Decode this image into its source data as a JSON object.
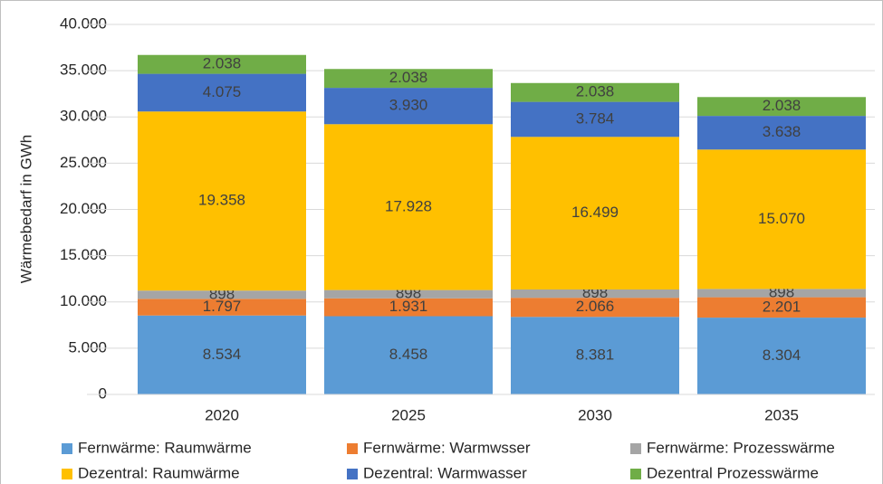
{
  "chart_data": {
    "type": "stacked-bar",
    "y_label": "Wärmebedarf in GWh",
    "categories": [
      "2020",
      "2025",
      "2030",
      "2035"
    ],
    "ylim": [
      0,
      40000
    ],
    "yticks": [
      0,
      {
        "value": 5000,
        "label": "5.000"
      },
      {
        "value": 10000,
        "label": "10.000"
      },
      {
        "value": 15000,
        "label": "15.000"
      },
      {
        "value": 20000,
        "label": "20.000"
      },
      {
        "value": 25000,
        "label": "25.000"
      },
      {
        "value": 30000,
        "label": "30.000"
      },
      {
        "value": 35000,
        "label": "35.000"
      },
      {
        "value": 40000,
        "label": "40.000"
      }
    ],
    "grid": true,
    "legend": "bottom",
    "series": [
      {
        "name": "Fernwärme: Raumwärme",
        "color": "#5b9bd5",
        "values": [
          8534,
          8458,
          8381,
          8304
        ],
        "value_labels": [
          "8.534",
          "8.458",
          "8.381",
          "8.304"
        ]
      },
      {
        "name": "Fernwärme: Warmwsser",
        "color": "#ed7d31",
        "values": [
          1797,
          1931,
          2066,
          2201
        ],
        "value_labels": [
          "1.797",
          "1.931",
          "2.066",
          "2.201"
        ]
      },
      {
        "name": "Fernwärme: Prozesswärme",
        "color": "#a5a5a5",
        "values": [
          898,
          898,
          898,
          898
        ],
        "value_labels": [
          "898",
          "898",
          "898",
          "898"
        ]
      },
      {
        "name": "Dezentral: Raumwärme",
        "color": "#ffc000",
        "values": [
          19358,
          17928,
          16499,
          15070
        ],
        "value_labels": [
          "19.358",
          "17.928",
          "16.499",
          "15.070"
        ]
      },
      {
        "name": "Dezentral: Warmwasser",
        "color": "#4472c4",
        "values": [
          4075,
          3930,
          3784,
          3638
        ],
        "value_labels": [
          "4.075",
          "3.930",
          "3.784",
          "3.638"
        ]
      },
      {
        "name": "Dezentral Prozesswärme",
        "color": "#70ad47",
        "values": [
          2038,
          2038,
          2038,
          2038
        ],
        "value_labels": [
          "2.038",
          "2.038",
          "2.038",
          "2.038"
        ]
      }
    ]
  }
}
